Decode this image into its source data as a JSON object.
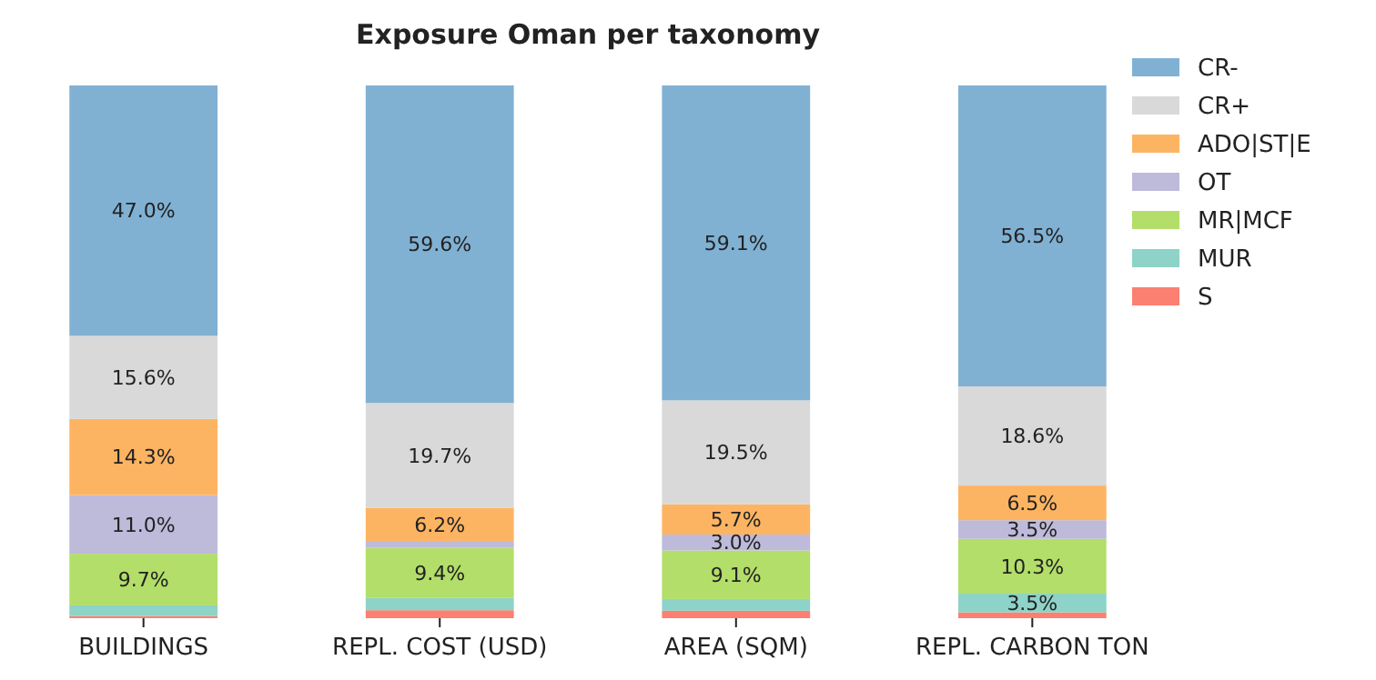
{
  "chart_data": {
    "type": "bar",
    "title": "Exposure Oman per taxonomy",
    "stacked": true,
    "categories": [
      "BUILDINGS",
      "REPL. COST (USD)",
      "AREA (SQM)",
      "REPL. CARBON TON"
    ],
    "ylim": [
      0,
      100
    ],
    "tick_labels": "x",
    "grid": false,
    "legend": "top right",
    "series": [
      {
        "name": "S",
        "color": "#fb8072",
        "values": [
          0.4,
          1.5,
          1.4,
          1.1
        ],
        "value_labels": [
          null,
          null,
          null,
          null
        ]
      },
      {
        "name": "MUR",
        "color": "#8dd3c7",
        "values": [
          2.0,
          2.3,
          2.2,
          3.5
        ],
        "value_labels": [
          null,
          null,
          null,
          "3.5%"
        ]
      },
      {
        "name": "MR|MCF",
        "color": "#b3de69",
        "values": [
          9.7,
          9.4,
          9.1,
          10.3
        ],
        "value_labels": [
          "9.7%",
          "9.4%",
          "9.1%",
          "10.3%"
        ]
      },
      {
        "name": "OT",
        "color": "#bebada",
        "values": [
          11.0,
          1.3,
          3.0,
          3.5
        ],
        "value_labels": [
          "11.0%",
          null,
          "3.0%",
          "3.5%"
        ]
      },
      {
        "name": "ADO|ST|E",
        "color": "#fdb462",
        "values": [
          14.3,
          6.2,
          5.7,
          6.5
        ],
        "value_labels": [
          "14.3%",
          "6.2%",
          "5.7%",
          "6.5%"
        ]
      },
      {
        "name": "CR+",
        "color": "#d9d9d9",
        "values": [
          15.6,
          19.7,
          19.5,
          18.6
        ],
        "value_labels": [
          "15.6%",
          "19.7%",
          "19.5%",
          "18.6%"
        ]
      },
      {
        "name": "CR-",
        "color": "#80b1d3",
        "values": [
          47.0,
          59.6,
          59.1,
          56.5
        ],
        "value_labels": [
          "47.0%",
          "59.6%",
          "59.1%",
          "56.5%"
        ]
      }
    ]
  }
}
